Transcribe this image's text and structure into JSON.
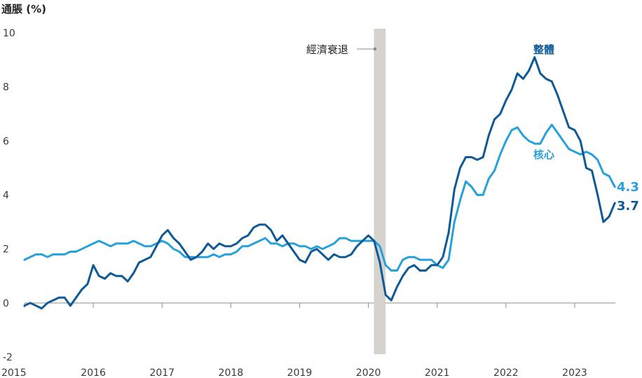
{
  "chart_data": {
    "type": "line",
    "ylabel": "通脹 (%)",
    "ylim": [
      -2,
      10
    ],
    "yticks": [
      "10",
      "8",
      "6",
      "4",
      "2",
      "0",
      "-2"
    ],
    "xlim": [
      2015.0,
      2023.583
    ],
    "xticks": [
      "2015",
      "2016",
      "2017",
      "2018",
      "2019",
      "2020",
      "2021",
      "2022",
      "2023"
    ],
    "grid": false,
    "recession": {
      "label": "經濟衰退",
      "start": 2020.08,
      "end": 2020.25
    },
    "series": [
      {
        "name": "整體",
        "color": "#0f5a96",
        "end_value_label": "3.7",
        "values": [
          -0.1,
          -0.0,
          -0.1,
          -0.2,
          0.0,
          0.1,
          0.2,
          0.2,
          -0.1,
          0.2,
          0.5,
          0.7,
          1.4,
          1.0,
          0.9,
          1.1,
          1.0,
          1.0,
          0.8,
          1.1,
          1.5,
          1.6,
          1.7,
          2.1,
          2.5,
          2.7,
          2.4,
          2.2,
          1.9,
          1.6,
          1.7,
          1.9,
          2.2,
          2.0,
          2.2,
          2.1,
          2.1,
          2.2,
          2.4,
          2.5,
          2.8,
          2.9,
          2.9,
          2.7,
          2.3,
          2.5,
          2.2,
          1.9,
          1.6,
          1.5,
          1.9,
          2.0,
          1.8,
          1.6,
          1.8,
          1.7,
          1.7,
          1.8,
          2.1,
          2.3,
          2.5,
          2.3,
          1.5,
          0.3,
          0.1,
          0.6,
          1.0,
          1.3,
          1.4,
          1.2,
          1.2,
          1.4,
          1.4,
          1.7,
          2.6,
          4.2,
          5.0,
          5.4,
          5.4,
          5.3,
          5.4,
          6.2,
          6.8,
          7.0,
          7.5,
          7.9,
          8.5,
          8.3,
          8.6,
          9.1,
          8.5,
          8.3,
          8.2,
          7.7,
          7.1,
          6.5,
          6.4,
          6.0,
          5.0,
          4.9,
          4.0,
          3.0,
          3.2,
          3.7
        ]
      },
      {
        "name": "核心",
        "color": "#27a1dc",
        "end_value_label": "4.3",
        "values": [
          1.6,
          1.7,
          1.8,
          1.8,
          1.7,
          1.8,
          1.8,
          1.8,
          1.9,
          1.9,
          2.0,
          2.1,
          2.2,
          2.3,
          2.2,
          2.1,
          2.2,
          2.2,
          2.2,
          2.3,
          2.2,
          2.1,
          2.1,
          2.2,
          2.3,
          2.2,
          2.0,
          1.9,
          1.7,
          1.7,
          1.7,
          1.7,
          1.7,
          1.8,
          1.7,
          1.8,
          1.8,
          1.9,
          2.1,
          2.1,
          2.2,
          2.3,
          2.4,
          2.2,
          2.2,
          2.1,
          2.2,
          2.2,
          2.1,
          2.1,
          2.0,
          2.1,
          2.0,
          2.1,
          2.2,
          2.4,
          2.4,
          2.3,
          2.3,
          2.3,
          2.3,
          2.3,
          2.1,
          1.4,
          1.2,
          1.2,
          1.6,
          1.7,
          1.7,
          1.6,
          1.6,
          1.6,
          1.4,
          1.3,
          1.6,
          3.0,
          3.8,
          4.5,
          4.3,
          4.0,
          4.0,
          4.6,
          4.9,
          5.5,
          6.0,
          6.4,
          6.5,
          6.2,
          6.0,
          5.9,
          5.9,
          6.3,
          6.6,
          6.3,
          6.0,
          5.7,
          5.6,
          5.5,
          5.6,
          5.5,
          5.3,
          4.8,
          4.7,
          4.3
        ]
      }
    ]
  }
}
